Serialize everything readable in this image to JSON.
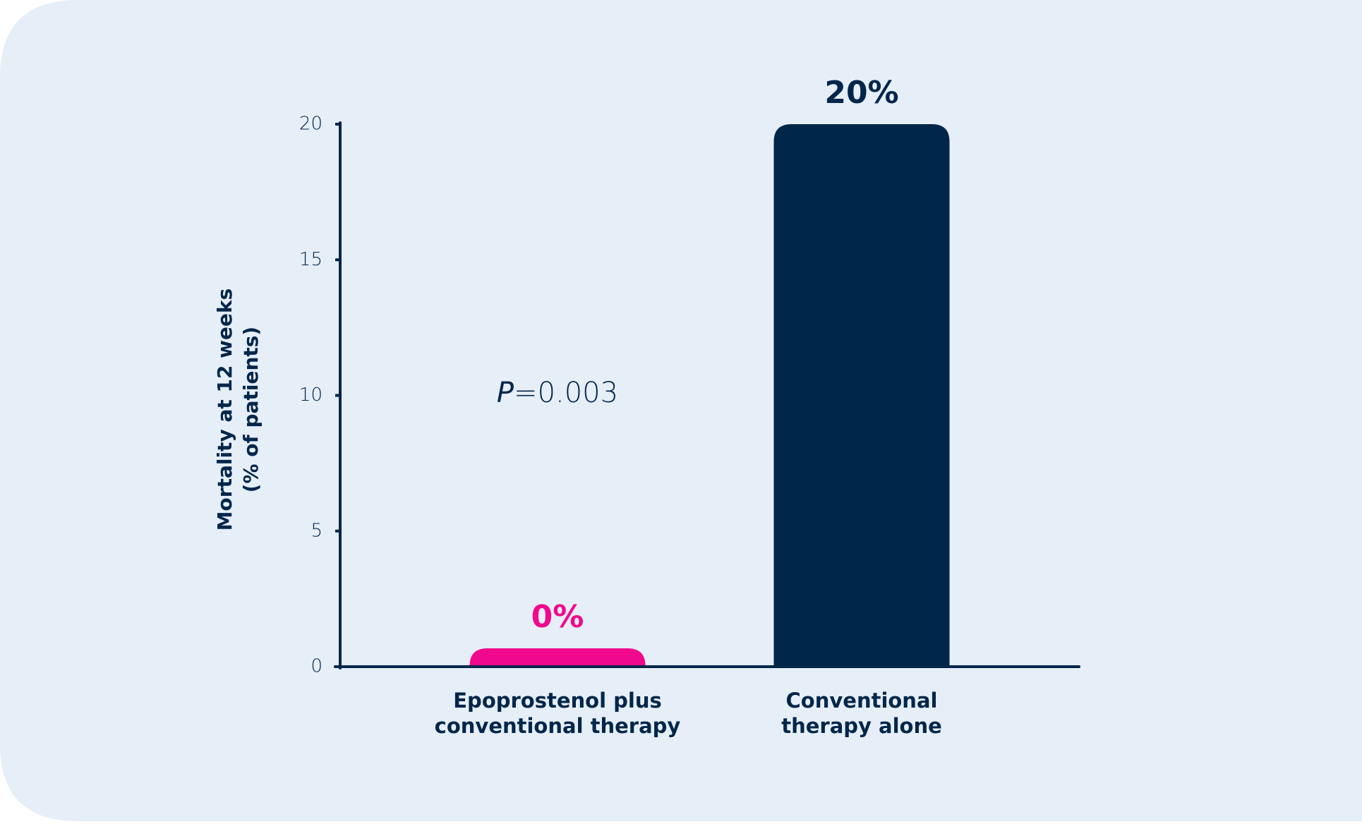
{
  "chart_data": {
    "type": "bar",
    "y_label": [
      "Mortality at 12 weeks",
      "(% of patients)"
    ],
    "categories": [
      [
        "Epoprostenol plus",
        "conventional therapy"
      ],
      [
        "Conventional",
        "therapy alone"
      ]
    ],
    "values": [
      0,
      20
    ],
    "value_labels": [
      "0%",
      "20%"
    ],
    "colors": [
      "#f0098c",
      "#00264a"
    ],
    "annotation": "P=0.003",
    "ylim": [
      0,
      20
    ],
    "yticks": [
      0,
      5,
      10,
      15,
      20
    ],
    "grid": false
  }
}
